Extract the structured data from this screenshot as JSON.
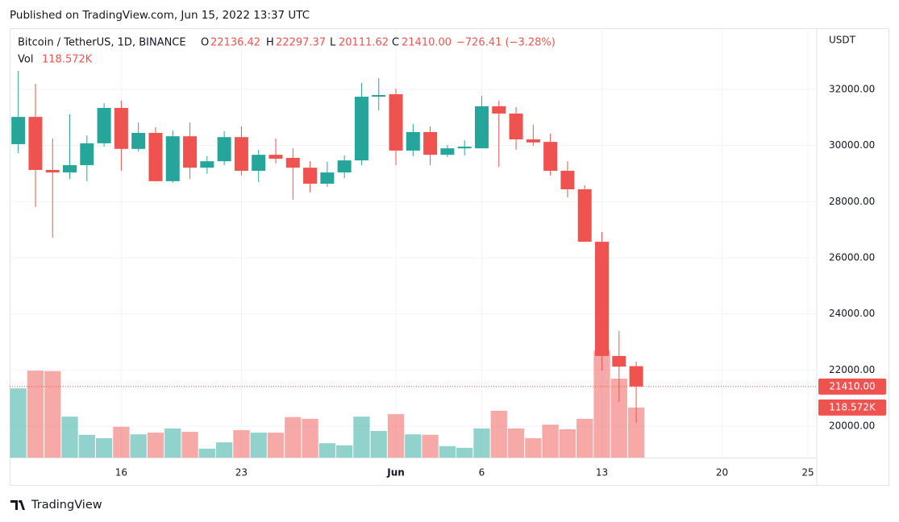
{
  "header": {
    "published": "Published on TradingView.com, Jun 15, 2022 13:37 UTC"
  },
  "chart_data": {
    "type": "candlestick",
    "symbol": "Bitcoin / TetherUS, 1D, BINANCE",
    "open_label": "O",
    "high_label": "H",
    "low_label": "L",
    "close_label": "C",
    "last_close_label": "21410.00",
    "change_text": "−726.41 (−3.28%)",
    "volume_label": "Vol",
    "last_volume_label": "118.572K",
    "currency": "USDT",
    "categories": [
      null,
      null,
      null,
      null,
      null,
      null,
      "16",
      null,
      null,
      null,
      null,
      null,
      null,
      "23",
      null,
      null,
      null,
      null,
      null,
      null,
      null,
      null,
      "Jun",
      null,
      null,
      null,
      null,
      "6",
      null,
      null,
      null,
      null,
      null,
      null,
      "13",
      null,
      null,
      null,
      null,
      null,
      null,
      "20",
      null,
      null,
      null,
      null,
      "25"
    ],
    "open": [
      30050,
      31020,
      29130,
      29040,
      29300,
      30080,
      31340,
      29880,
      30450,
      28730,
      30330,
      29210,
      29440,
      30300,
      29100,
      29670,
      29560,
      29210,
      28640,
      29040,
      29470,
      31740,
      31830,
      29820,
      30480,
      29670,
      29900,
      29900,
      31400,
      31140,
      30220,
      30130,
      29100,
      28440,
      26570,
      22500,
      22136.42,
      null,
      null,
      null,
      null,
      null,
      null,
      null,
      null,
      null,
      null
    ],
    "high": [
      32660,
      32200,
      30250,
      31110,
      30360,
      31510,
      31600,
      30820,
      30650,
      30540,
      30820,
      29620,
      30510,
      30680,
      29850,
      30250,
      29900,
      29440,
      29420,
      29650,
      32230,
      32400,
      32030,
      30770,
      30680,
      30020,
      30190,
      31770,
      31600,
      31370,
      30740,
      30420,
      29440,
      28580,
      26920,
      23390,
      22297.37,
      null,
      null,
      null,
      null,
      null,
      null,
      null,
      null,
      null,
      null
    ],
    "low": [
      29730,
      27810,
      26720,
      28810,
      28730,
      29960,
      29100,
      29790,
      28730,
      28670,
      28810,
      28990,
      29300,
      28930,
      28700,
      29360,
      28070,
      28330,
      28530,
      28840,
      29300,
      31250,
      29300,
      29620,
      29300,
      29590,
      29650,
      29900,
      29240,
      29850,
      29990,
      28930,
      28150,
      26570,
      21980,
      20860,
      20111.62,
      null,
      null,
      null,
      null,
      null,
      null,
      null,
      null,
      null,
      null
    ],
    "close": [
      31020,
      29130,
      29040,
      29300,
      30080,
      31340,
      29880,
      30450,
      28730,
      30330,
      29210,
      29440,
      30300,
      29100,
      29670,
      29530,
      29210,
      28640,
      29040,
      29470,
      31740,
      31800,
      29820,
      30480,
      29670,
      29900,
      29960,
      31400,
      31140,
      30220,
      30110,
      29100,
      28440,
      26570,
      22500,
      22120,
      21410.0,
      null,
      null,
      null,
      null,
      null,
      null,
      null,
      null,
      null,
      null
    ],
    "volume": [
      164,
      206,
      205,
      97,
      54,
      46,
      73,
      55,
      59,
      69,
      61,
      21,
      36,
      65,
      59,
      59,
      96,
      92,
      34,
      29,
      97,
      63,
      103,
      55,
      54,
      27,
      23,
      69,
      111,
      69,
      46,
      78,
      67,
      92,
      254,
      187,
      118.572,
      null,
      null,
      null,
      null,
      null,
      null,
      null,
      null,
      null,
      null
    ],
    "up_color": "#26a69a",
    "down_color": "#ef5350",
    "ylim": [
      18879,
      34182
    ],
    "yticks": [
      {
        "value": 20000,
        "label": "20000.00"
      },
      {
        "value": 22000,
        "label": "22000.00"
      },
      {
        "value": 24000,
        "label": "24000.00"
      },
      {
        "value": 26000,
        "label": "26000.00"
      },
      {
        "value": 28000,
        "label": "28000.00"
      },
      {
        "value": 30000,
        "label": "30000.00"
      },
      {
        "value": 32000,
        "label": "32000.00"
      }
    ],
    "grid": true
  },
  "footer": {
    "brand": "TradingView"
  }
}
